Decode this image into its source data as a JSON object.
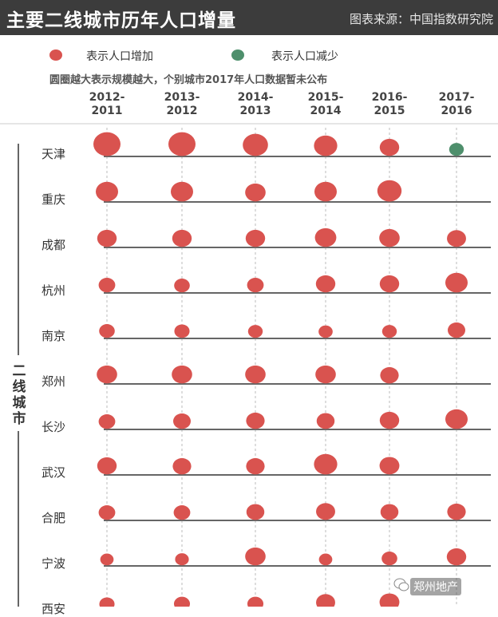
{
  "header": {
    "title": "主要二线城市历年人口增量",
    "source": "图表来源：中国指数研究院"
  },
  "legend": {
    "increase": {
      "label": "表示人口增加",
      "color": "#d9534f"
    },
    "decrease": {
      "label": "表示人口减少",
      "color": "#4e8f6c"
    }
  },
  "note": "圆圈越大表示规模越大，个别城市2017年人口数据暂未公布",
  "watermark": {
    "text": "郑州地产",
    "icon": "wechat-icon"
  },
  "chart_data": {
    "type": "bubble-matrix",
    "group_label": "二线城市",
    "columns": [
      [
        "2012-",
        "2011"
      ],
      [
        "2013-",
        "2012"
      ],
      [
        "2014-",
        "2013"
      ],
      [
        "2015-",
        "2014"
      ],
      [
        "2016-",
        "2015"
      ],
      [
        "2017-",
        "2016"
      ]
    ],
    "rows": [
      {
        "city": "天津",
        "sizes": [
          1.0,
          1.0,
          0.9,
          0.8,
          0.6,
          -0.35
        ]
      },
      {
        "city": "重庆",
        "sizes": [
          0.75,
          0.75,
          0.65,
          0.75,
          0.85,
          null
        ]
      },
      {
        "city": "成都",
        "sizes": [
          0.6,
          0.6,
          0.6,
          0.7,
          0.65,
          0.58
        ]
      },
      {
        "city": "杭州",
        "sizes": [
          0.45,
          0.4,
          0.45,
          0.6,
          0.6,
          0.75
        ]
      },
      {
        "city": "南京",
        "sizes": [
          0.4,
          0.38,
          0.35,
          0.32,
          0.35,
          0.5
        ]
      },
      {
        "city": "郑州",
        "sizes": [
          0.65,
          0.65,
          0.65,
          0.65,
          0.55,
          null
        ]
      },
      {
        "city": "长沙",
        "sizes": [
          0.45,
          0.5,
          0.55,
          0.52,
          0.6,
          0.75
        ]
      },
      {
        "city": "武汉",
        "sizes": [
          0.6,
          0.55,
          0.55,
          0.8,
          0.62,
          null
        ]
      },
      {
        "city": "合肥",
        "sizes": [
          0.45,
          0.45,
          0.52,
          0.58,
          0.52,
          0.55
        ]
      },
      {
        "city": "宁波",
        "sizes": [
          0.28,
          0.3,
          0.65,
          0.28,
          0.4,
          0.6
        ]
      },
      {
        "city": "西安",
        "sizes": [
          0.38,
          0.42,
          0.42,
          0.58,
          0.62,
          null
        ]
      }
    ]
  }
}
